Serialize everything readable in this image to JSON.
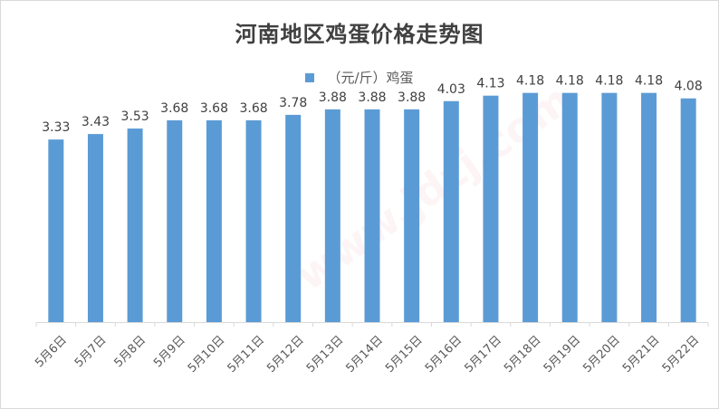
{
  "chart_data": {
    "type": "bar",
    "title": "河南地区鸡蛋价格走势图",
    "categories": [
      "5月6日",
      "5月7日",
      "5月8日",
      "5月9日",
      "5月10日",
      "5月11日",
      "5月12日",
      "5月13日",
      "5月14日",
      "5月15日",
      "5月16日",
      "5月17日",
      "5月18日",
      "5月19日",
      "5月20日",
      "5月21日",
      "5月22日"
    ],
    "series": [
      {
        "name": "（元/斤）鸡蛋",
        "values": [
          3.33,
          3.43,
          3.53,
          3.68,
          3.68,
          3.68,
          3.78,
          3.88,
          3.88,
          3.88,
          4.03,
          4.13,
          4.18,
          4.18,
          4.18,
          4.18,
          4.08
        ]
      }
    ],
    "ylim": [
      0,
      4.95
    ],
    "grid": false,
    "legend_position": "top-center",
    "data_labels": true,
    "bar_color": "#5b9bd5"
  }
}
